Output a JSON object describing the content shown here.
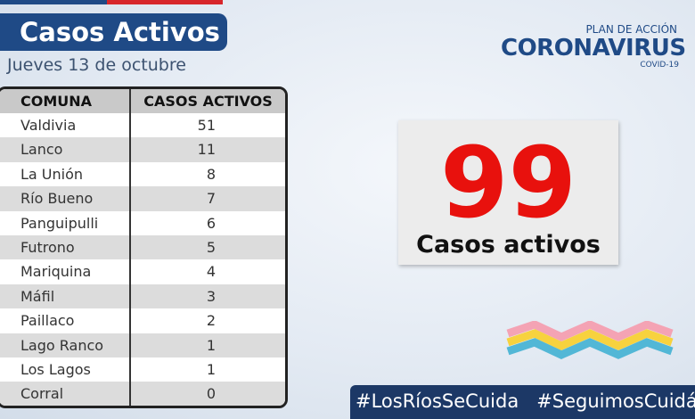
{
  "header": {
    "title": "Casos Activos",
    "date": "Jueves 13 de octubre"
  },
  "logo": {
    "plan": "PLAN DE ACCIÓN",
    "name": "CORONAVIRUS",
    "sub": "COVID-19"
  },
  "table": {
    "columns": [
      "COMUNA",
      "CASOS ACTIVOS"
    ],
    "rows": [
      [
        "Valdivia",
        51
      ],
      [
        "Lanco",
        11
      ],
      [
        "La Unión",
        8
      ],
      [
        "Río Bueno",
        7
      ],
      [
        "Panguipulli",
        6
      ],
      [
        "Futrono",
        5
      ],
      [
        "Mariquina",
        4
      ],
      [
        "Máfil",
        3
      ],
      [
        "Paillaco",
        2
      ],
      [
        "Lago Ranco",
        1
      ],
      [
        "Los Lagos",
        1
      ],
      [
        "Corral",
        0
      ]
    ]
  },
  "summary": {
    "total": 99,
    "label": "Casos activos"
  },
  "footer": {
    "hashtags": [
      "#LosRíosSeCuida",
      "#SeguimosCuidándonos"
    ]
  }
}
